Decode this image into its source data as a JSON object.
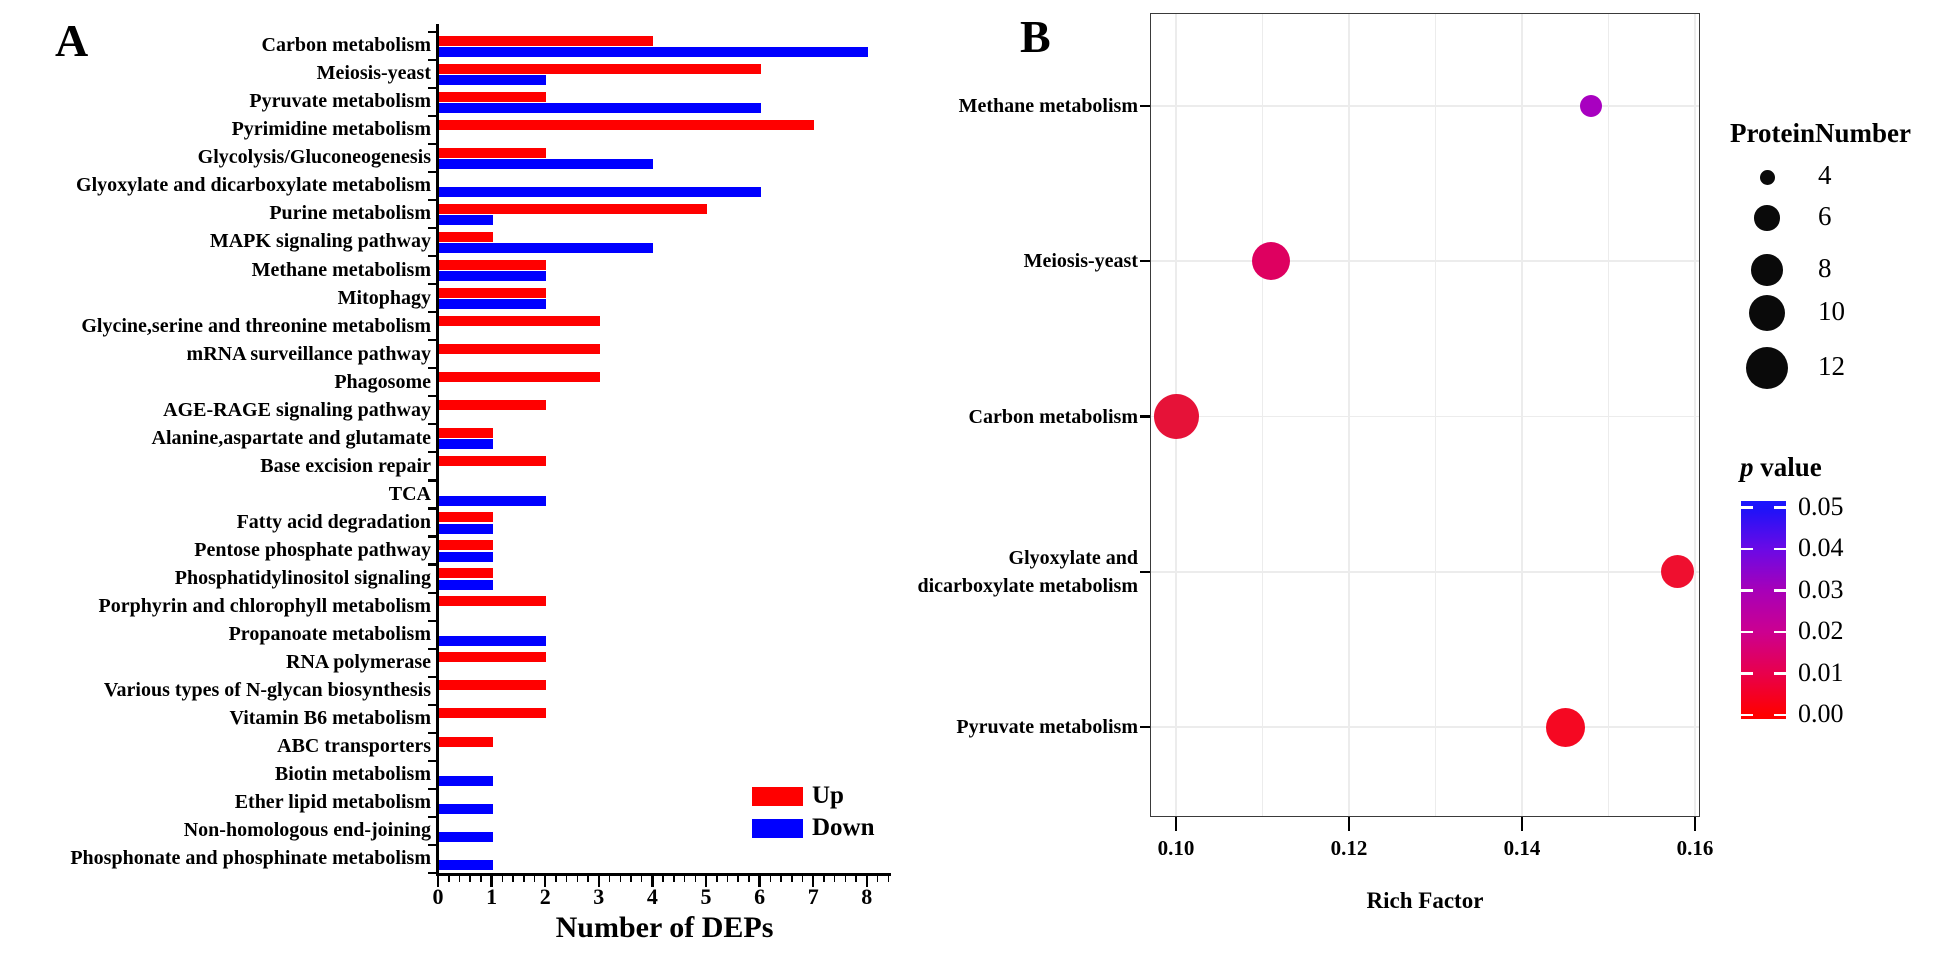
{
  "figure": {
    "panel_a": {
      "panel_label": "A",
      "xlabel": "Number of DEPs",
      "x_ticks": [
        0,
        1,
        2,
        3,
        4,
        5,
        6,
        7,
        8
      ],
      "legend": [
        {
          "label": "Up",
          "color": "#ff0000"
        },
        {
          "label": "Down",
          "color": "#0000ff"
        }
      ],
      "chart_data": {
        "type": "bar",
        "orientation": "horizontal",
        "xlabel": "Number of DEPs",
        "xlim": [
          0,
          8.5
        ],
        "categories": [
          "Carbon metabolism",
          "Meiosis-yeast",
          "Pyruvate metabolism",
          "Pyrimidine metabolism",
          "Glycolysis/Gluconeogenesis",
          "Glyoxylate and dicarboxylate metabolism",
          "Purine metabolism",
          "MAPK signaling pathway",
          "Methane metabolism",
          "Mitophagy",
          "Glycine,serine and threonine metabolism",
          "mRNA surveillance pathway",
          "Phagosome",
          "AGE-RAGE signaling pathway",
          "Alanine,aspartate and glutamate",
          "Base excision repair",
          "TCA",
          "Fatty acid degradation",
          "Pentose phosphate pathway",
          "Phosphatidylinositol signaling",
          "Porphyrin and chlorophyll metabolism",
          "Propanoate metabolism",
          "RNA polymerase",
          "Various types of N-glycan biosynthesis",
          "Vitamin B6 metabolism",
          "ABC transporters",
          "Biotin metabolism",
          "Ether lipid metabolism",
          "Non-homologous end-joining",
          "Phosphonate and phosphinate metabolism"
        ],
        "series": [
          {
            "name": "Up",
            "color": "#ff0000",
            "values": [
              4,
              6,
              2,
              7,
              2,
              0,
              5,
              1,
              2,
              2,
              3,
              3,
              3,
              2,
              1,
              2,
              0,
              1,
              1,
              1,
              2,
              0,
              2,
              2,
              2,
              1,
              0,
              0,
              0,
              0
            ]
          },
          {
            "name": "Down",
            "color": "#0000ff",
            "values": [
              8,
              2,
              6,
              0,
              4,
              6,
              1,
              4,
              2,
              2,
              0,
              0,
              0,
              0,
              1,
              0,
              2,
              1,
              1,
              1,
              0,
              2,
              0,
              0,
              0,
              0,
              1,
              1,
              1,
              1
            ]
          }
        ]
      }
    },
    "panel_b": {
      "panel_label": "B",
      "xlabel": "Rich Factor",
      "x_tick_labels": [
        "0.10",
        "0.12",
        "0.14",
        "0.16"
      ],
      "x_tick_values": [
        0.1,
        0.12,
        0.14,
        0.16
      ],
      "chart_data": {
        "type": "scatter",
        "xlabel": "Rich Factor",
        "xlim": [
          0.097,
          0.161
        ],
        "grid": true,
        "points": [
          {
            "pathway": "Methane metabolism",
            "label_lines": [
              "Methane metabolism"
            ],
            "rich_factor": 0.148,
            "protein_number": 4,
            "p_value_est": 0.038,
            "color": "#a800c0"
          },
          {
            "pathway": "Meiosis-yeast",
            "label_lines": [
              "Meiosis-yeast"
            ],
            "rich_factor": 0.111,
            "protein_number": 8,
            "p_value_est": 0.015,
            "color": "#de0060"
          },
          {
            "pathway": "Carbon metabolism",
            "label_lines": [
              "Carbon metabolism"
            ],
            "rich_factor": 0.1,
            "protein_number": 12,
            "p_value_est": 0.008,
            "color": "#e61238"
          },
          {
            "pathway": "Glyoxylate and dicarboxylate metabolism",
            "label_lines": [
              "Glyoxylate and",
              "dicarboxylate metabolism"
            ],
            "rich_factor": 0.158,
            "protein_number": 6,
            "p_value_est": 0.005,
            "color": "#ef0f2f"
          },
          {
            "pathway": "Pyruvate metabolism",
            "label_lines": [
              "Pyruvate metabolism"
            ],
            "rich_factor": 0.145,
            "protein_number": 8,
            "p_value_est": 0.004,
            "color": "#f50822"
          }
        ]
      },
      "size_legend": {
        "title": "ProteinNumber",
        "entries": [
          4,
          6,
          8,
          10,
          12
        ]
      },
      "color_legend": {
        "title_italic": "p",
        "title_rest": " value",
        "ticks": [
          "0.05",
          "0.04",
          "0.03",
          "0.02",
          "0.01",
          "0.00"
        ],
        "gradient_top_to_bottom": [
          "#1b16ff",
          "#2012f8",
          "#6a0ae6",
          "#a700b8",
          "#cc0090",
          "#e8004c",
          "#ff0000"
        ]
      }
    }
  }
}
